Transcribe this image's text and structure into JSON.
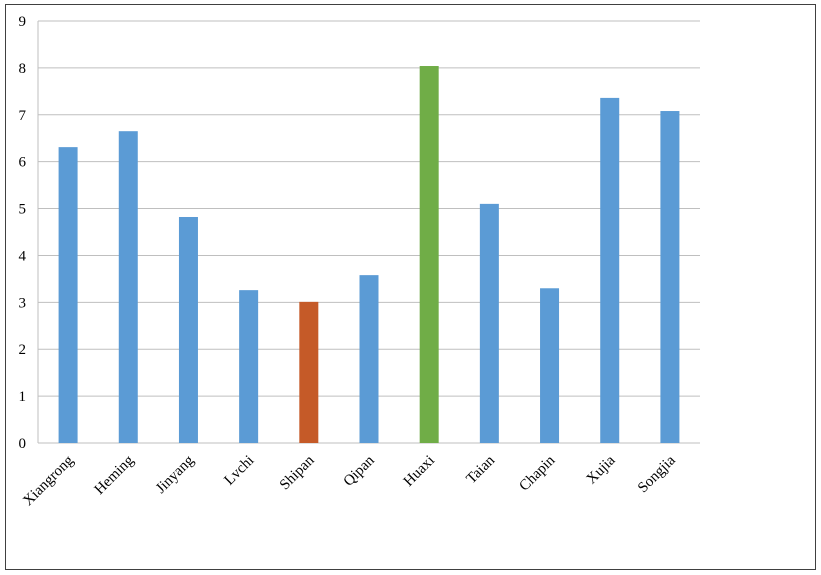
{
  "chart_data": {
    "type": "bar",
    "categories": [
      "Xiangrong",
      "Heming",
      "Jinyang",
      "Lvchi",
      "Shipan",
      "Qipan",
      "Huaxi",
      "Taian",
      "Chapin",
      "Xujia",
      "Songjia"
    ],
    "values": [
      6.31,
      6.65,
      4.82,
      3.26,
      3.01,
      3.58,
      8.04,
      5.1,
      3.3,
      7.36,
      7.08
    ],
    "colors": [
      "#5b9bd5",
      "#5b9bd5",
      "#5b9bd5",
      "#5b9bd5",
      "#c55a28",
      "#5b9bd5",
      "#70ad47",
      "#5b9bd5",
      "#5b9bd5",
      "#5b9bd5",
      "#5b9bd5"
    ],
    "ylim": [
      0,
      9
    ],
    "yticks": [
      0,
      1,
      2,
      3,
      4,
      5,
      6,
      7,
      8,
      9
    ],
    "grid": true
  }
}
